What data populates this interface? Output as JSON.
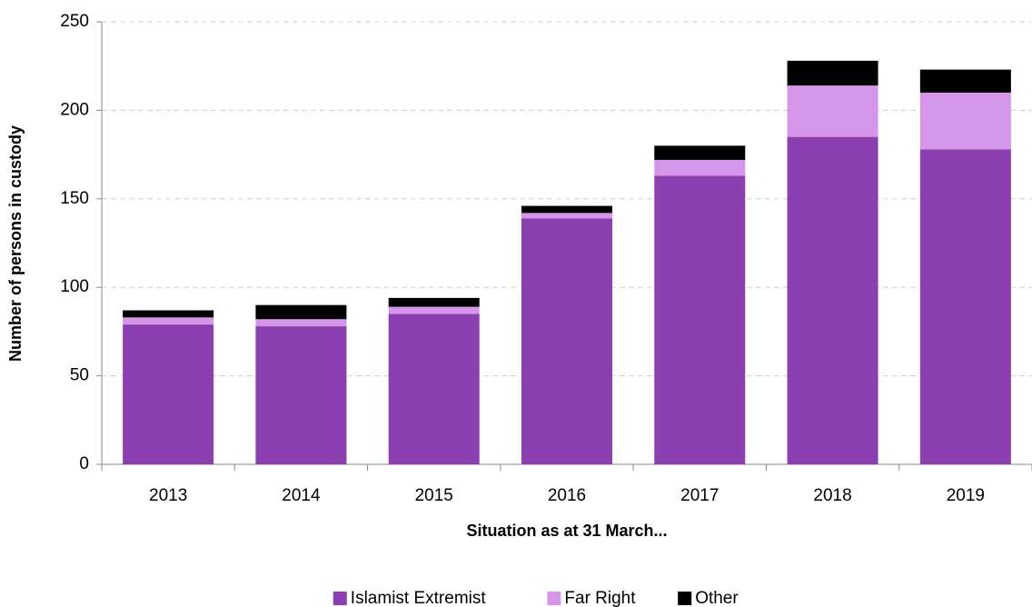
{
  "chart_data": {
    "type": "stacked_bar",
    "x_label": "Situation as at 31 March...",
    "y_label": "Number of persons in custody",
    "categories": [
      "2013",
      "2014",
      "2015",
      "2016",
      "2017",
      "2018",
      "2019"
    ],
    "series": [
      {
        "name": "Islamist Extremist",
        "color": "#8b3fb0",
        "values": [
          79,
          78,
          85,
          139,
          163,
          185,
          178
        ]
      },
      {
        "name": "Far Right",
        "color": "#d595e8",
        "values": [
          4,
          4,
          4,
          3,
          9,
          29,
          32
        ]
      },
      {
        "name": "Other",
        "color": "#000000",
        "values": [
          4,
          8,
          5,
          4,
          8,
          14,
          13
        ]
      }
    ],
    "ylim": [
      0,
      250
    ],
    "yticks": [
      0,
      50,
      100,
      150,
      200,
      250
    ],
    "grid": true
  }
}
